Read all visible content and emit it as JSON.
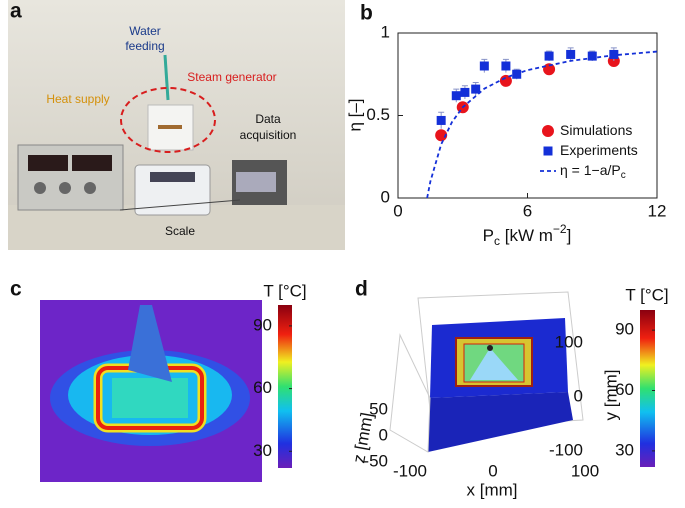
{
  "panels": {
    "a": {
      "letter": "a",
      "water": [
        "Water",
        "feeding"
      ],
      "steam": "Steam generator",
      "heat": "Heat supply",
      "daq": [
        "Data",
        "acquisition"
      ],
      "scale": "Scale"
    },
    "c": {
      "letter": "c",
      "colorbar": {
        "label": "T [°C]",
        "lim": [
          22,
          100
        ],
        "ticks": [
          30,
          60,
          90
        ]
      }
    },
    "d": {
      "letter": "d",
      "colorbar": {
        "label": "T [°C]",
        "lim": [
          22,
          100
        ],
        "ticks": [
          30,
          60,
          90
        ]
      },
      "xticks": [
        -100,
        0,
        100
      ],
      "yticks": [
        100,
        0,
        -100
      ],
      "zticks": [
        50,
        0,
        -50
      ],
      "xlabel": "x [mm]",
      "ylabel": "y [mm]",
      "zlabel": "z [mm]"
    }
  },
  "chart_data": {
    "type": "scatter",
    "letter": "b",
    "ylabel": "η [–]",
    "xlabel": {
      "base": "P",
      "sub": "c",
      "unit": " [kW m",
      "sup": "−2",
      "end": "]"
    },
    "xlim": [
      0,
      12
    ],
    "ylim": [
      0,
      1
    ],
    "xticks": [
      0,
      6,
      12
    ],
    "yticks": [
      0,
      0.5,
      1
    ],
    "series": [
      {
        "name": "Simulations",
        "color": "#e8141c",
        "marker": "circle",
        "x": [
          2,
          3,
          5,
          7,
          10
        ],
        "values": [
          0.38,
          0.55,
          0.71,
          0.78,
          0.83
        ]
      },
      {
        "name": "Experiments",
        "color": "#1430d8",
        "marker": "square",
        "x": [
          2,
          2.7,
          3.1,
          3.6,
          4,
          5,
          5.5,
          7,
          8,
          9,
          10
        ],
        "values": [
          0.47,
          0.62,
          0.64,
          0.66,
          0.8,
          0.8,
          0.75,
          0.86,
          0.87,
          0.86,
          0.87
        ],
        "errors": [
          0.05,
          0.04,
          0.04,
          0.04,
          0.04,
          0.04,
          0.03,
          0.03,
          0.04,
          0.03,
          0.04
        ]
      },
      {
        "name": "η = 1−a/P",
        "name_sub": "c",
        "color": "#1430d8",
        "marker": "dashed",
        "x": [
          1.35,
          1.5,
          2,
          2.5,
          3,
          4,
          5,
          6,
          8,
          10,
          12
        ],
        "values": [
          0,
          0.1,
          0.325,
          0.46,
          0.55,
          0.6625,
          0.73,
          0.775,
          0.83125,
          0.865,
          0.8875
        ]
      }
    ],
    "legend": "lower right"
  }
}
